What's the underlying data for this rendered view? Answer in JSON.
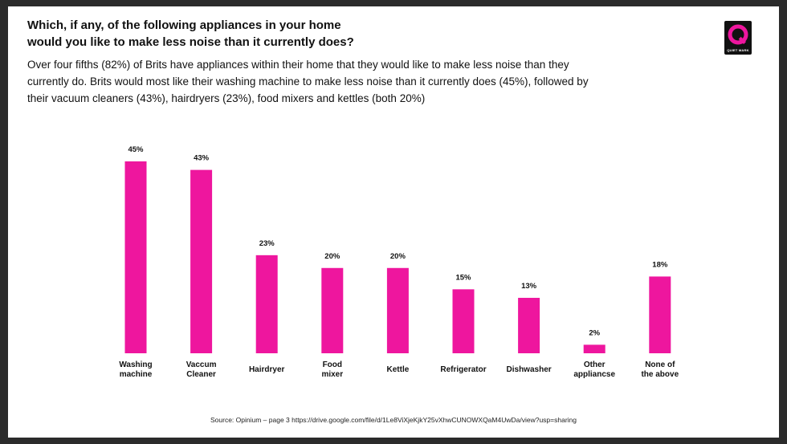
{
  "title": [
    "Which, if any, of the following appliances in your home",
    "would you like to make less noise than it currently does?"
  ],
  "subtitle": [
    "Over four fifths (82%) of Brits have appliances within their home that they would like to make less noise than they",
    "currently do. Brits would most like their washing machine to make less noise than it currently does (45%), followed by",
    "their vacuum cleaners (43%), hairdryers (23%), food mixers and kettles (both 20%)"
  ],
  "logo": {
    "letter": "Q",
    "text": "QUIET MARK"
  },
  "source": "Source: Opinium – page 3 https://drive.google.com/file/d/1Le8ViXjeKjkY25vXhwCUNOWXQaM4UwDa/view?usp=sharing",
  "colors": {
    "bar": "#ee169e",
    "logo_accent": "#ee169e",
    "logo_bg": "#111111"
  },
  "chart_data": {
    "type": "bar",
    "categories": [
      [
        "Washing",
        "machine"
      ],
      [
        "Vaccum",
        "Cleaner"
      ],
      [
        "Hairdryer"
      ],
      [
        "Food",
        "mixer"
      ],
      [
        "Kettle"
      ],
      [
        "Refrigerator"
      ],
      [
        "Dishwasher"
      ],
      [
        "Other",
        "appliancse"
      ],
      [
        "None of",
        "the above"
      ]
    ],
    "values": [
      45,
      43,
      23,
      20,
      20,
      15,
      13,
      2,
      18
    ],
    "value_labels": [
      "45%",
      "43%",
      "23%",
      "20%",
      "20%",
      "15%",
      "13%",
      "2%",
      "18%"
    ],
    "title": "",
    "xlabel": "",
    "ylabel": "",
    "ylim": [
      0,
      45
    ],
    "grid": false
  }
}
